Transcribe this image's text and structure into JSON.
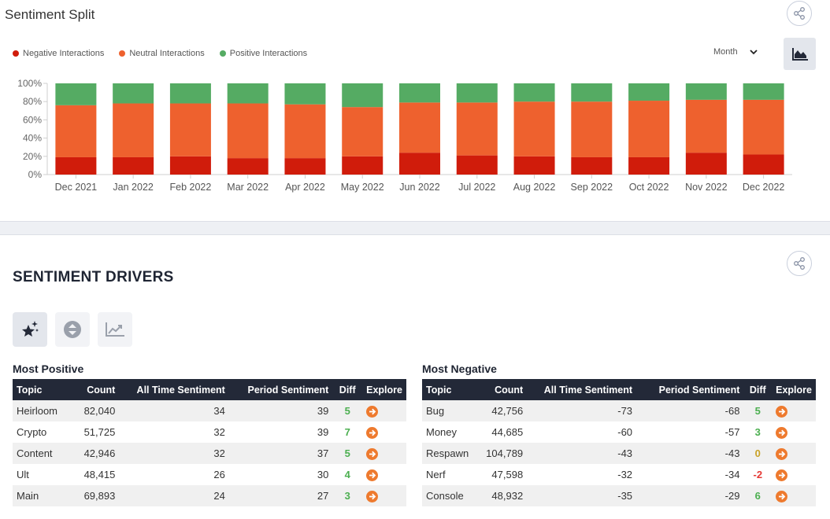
{
  "sentiment_split": {
    "title": "Sentiment Split",
    "legend": [
      {
        "label": "Negative Interactions",
        "color": "#d01c0b"
      },
      {
        "label": "Neutral Interactions",
        "color": "#ee612e"
      },
      {
        "label": "Positive Interactions",
        "color": "#55ab63"
      }
    ],
    "period_select": {
      "value": "Month"
    },
    "share_icon": "share-icon",
    "chart_type_icon": "area-chart-icon"
  },
  "chart_data": {
    "type": "bar",
    "stacked": true,
    "percent": true,
    "categories": [
      "Dec 2021",
      "Jan 2022",
      "Feb 2022",
      "Mar 2022",
      "Apr 2022",
      "May 2022",
      "Jun 2022",
      "Jul 2022",
      "Aug 2022",
      "Sep 2022",
      "Oct 2022",
      "Nov 2022",
      "Dec 2022"
    ],
    "y_ticks": [
      "100%",
      "80%",
      "60%",
      "40%",
      "20%",
      "0%"
    ],
    "ylim": [
      0,
      100
    ],
    "series": [
      {
        "name": "Negative Interactions",
        "color": "#d01c0b",
        "values": [
          19,
          19,
          20,
          18,
          18,
          20,
          24,
          21,
          20,
          19,
          19,
          24,
          22
        ]
      },
      {
        "name": "Neutral Interactions",
        "color": "#ee612e",
        "values": [
          57,
          59,
          58,
          60,
          59,
          54,
          55,
          58,
          60,
          61,
          62,
          58,
          60
        ]
      },
      {
        "name": "Positive Interactions",
        "color": "#55ab63",
        "values": [
          24,
          22,
          22,
          22,
          23,
          26,
          21,
          21,
          20,
          20,
          19,
          18,
          18
        ]
      }
    ],
    "grid": false,
    "legend_position": "top-left"
  },
  "drivers": {
    "title": "SENTIMENT DRIVERS",
    "modes": [
      {
        "icon": "sparkles-icon",
        "active": true
      },
      {
        "icon": "swap-vertical-icon",
        "active": false
      },
      {
        "icon": "trend-line-icon",
        "active": false
      }
    ],
    "columns": [
      "Topic",
      "Count",
      "All Time Sentiment",
      "Period Sentiment",
      "Diff",
      "Explore"
    ],
    "positive": {
      "title": "Most Positive",
      "rows": [
        {
          "topic": "Heirloom",
          "count": "82,040",
          "all_time": "34",
          "period": "39",
          "diff": "5",
          "diff_color": "#4caf50"
        },
        {
          "topic": "Crypto",
          "count": "51,725",
          "all_time": "32",
          "period": "39",
          "diff": "7",
          "diff_color": "#4caf50"
        },
        {
          "topic": "Content",
          "count": "42,946",
          "all_time": "32",
          "period": "37",
          "diff": "5",
          "diff_color": "#4caf50"
        },
        {
          "topic": "Ult",
          "count": "48,415",
          "all_time": "26",
          "period": "30",
          "diff": "4",
          "diff_color": "#4caf50"
        },
        {
          "topic": "Main",
          "count": "69,893",
          "all_time": "24",
          "period": "27",
          "diff": "3",
          "diff_color": "#4caf50"
        }
      ]
    },
    "negative": {
      "title": "Most Negative",
      "rows": [
        {
          "topic": "Bug",
          "count": "42,756",
          "all_time": "-73",
          "period": "-68",
          "diff": "5",
          "diff_color": "#4caf50"
        },
        {
          "topic": "Money",
          "count": "44,685",
          "all_time": "-60",
          "period": "-57",
          "diff": "3",
          "diff_color": "#4caf50"
        },
        {
          "topic": "Respawn",
          "count": "104,789",
          "all_time": "-43",
          "period": "-43",
          "diff": "0",
          "diff_color": "#c9a227"
        },
        {
          "topic": "Nerf",
          "count": "47,598",
          "all_time": "-32",
          "period": "-34",
          "diff": "-2",
          "diff_color": "#e53935"
        },
        {
          "topic": "Console",
          "count": "48,932",
          "all_time": "-35",
          "period": "-29",
          "diff": "6",
          "diff_color": "#4caf50"
        }
      ]
    }
  }
}
